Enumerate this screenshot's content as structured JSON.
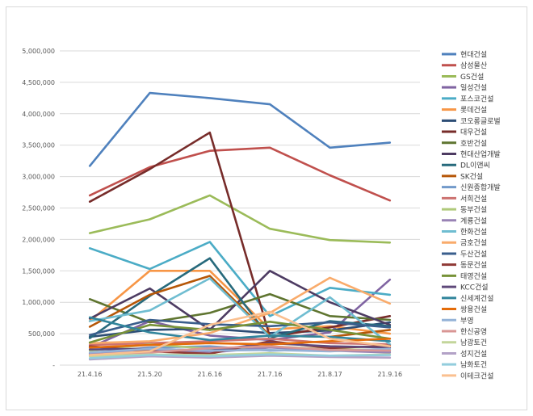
{
  "chart_data": {
    "type": "line",
    "title": "",
    "xlabel": "",
    "ylabel": "",
    "ylim": [
      0,
      5000000
    ],
    "yticks": [
      0,
      500000,
      1000000,
      1500000,
      2000000,
      2500000,
      3000000,
      3500000,
      4000000,
      4500000,
      5000000
    ],
    "ytick_labels": [
      "-",
      "500,000",
      "1,000,000",
      "1,500,000",
      "2,000,000",
      "2,500,000",
      "3,000,000",
      "3,500,000",
      "4,000,000",
      "4,500,000",
      "5,000,000"
    ],
    "categories": [
      "21.4.16",
      "21.5.20",
      "21.6.16",
      "21.7.16",
      "21.8.17",
      "21.9.16"
    ],
    "grid": true,
    "legend": "right",
    "series": [
      {
        "name": "현대건설",
        "color": "#4f81bd",
        "values": [
          3170000,
          4330000,
          4250000,
          4150000,
          3460000,
          3540000
        ]
      },
      {
        "name": "삼성물산",
        "color": "#c0504d",
        "values": [
          2700000,
          3150000,
          3410000,
          3460000,
          3020000,
          2620000
        ]
      },
      {
        "name": "GS건설",
        "color": "#9bbb59",
        "values": [
          2100000,
          2320000,
          2700000,
          2170000,
          1990000,
          1950000
        ]
      },
      {
        "name": "일성건설",
        "color": "#8064a2",
        "values": [
          280000,
          700000,
          470000,
          400000,
          520000,
          1360000
        ]
      },
      {
        "name": "포스코건설",
        "color": "#4bacc6",
        "values": [
          1860000,
          1530000,
          1960000,
          780000,
          1230000,
          1120000
        ]
      },
      {
        "name": "롯데건설",
        "color": "#f79646",
        "values": [
          700000,
          1500000,
          1500000,
          570000,
          620000,
          500000
        ]
      },
      {
        "name": "코오롱글로벌",
        "color": "#2c4d75",
        "values": [
          450000,
          560000,
          580000,
          510000,
          550000,
          680000
        ]
      },
      {
        "name": "대우건설",
        "color": "#772c2a",
        "values": [
          2600000,
          3120000,
          3700000,
          450000,
          600000,
          780000
        ]
      },
      {
        "name": "호반건설",
        "color": "#5f7530",
        "values": [
          1050000,
          680000,
          830000,
          1130000,
          780000,
          720000
        ]
      },
      {
        "name": "현대산업개발",
        "color": "#4d3b62",
        "values": [
          740000,
          1220000,
          560000,
          1500000,
          1000000,
          640000
        ]
      },
      {
        "name": "DL이앤씨",
        "color": "#276a7c",
        "values": [
          430000,
          1100000,
          1700000,
          430000,
          700000,
          620000
        ]
      },
      {
        "name": "SK건설",
        "color": "#b65708",
        "values": [
          610000,
          1120000,
          1420000,
          470000,
          450000,
          560000
        ]
      },
      {
        "name": "신원종합개발",
        "color": "#729aca",
        "values": [
          190000,
          280000,
          300000,
          230000,
          250000,
          220000
        ]
      },
      {
        "name": "서희건설",
        "color": "#cd7371",
        "values": [
          320000,
          350000,
          380000,
          420000,
          350000,
          330000
        ]
      },
      {
        "name": "동부건설",
        "color": "#afc97a",
        "values": [
          230000,
          330000,
          260000,
          300000,
          250000,
          240000
        ]
      },
      {
        "name": "계룡건설",
        "color": "#9983b5",
        "values": [
          180000,
          240000,
          200000,
          280000,
          230000,
          200000
        ]
      },
      {
        "name": "한화건설",
        "color": "#6fbdd1",
        "values": [
          700000,
          870000,
          1380000,
          450000,
          1080000,
          330000
        ]
      },
      {
        "name": "금호건설",
        "color": "#f9ab6b",
        "values": [
          350000,
          380000,
          510000,
          830000,
          1390000,
          980000
        ]
      },
      {
        "name": "두산건설",
        "color": "#3a5e8c",
        "values": [
          480000,
          720000,
          650000,
          620000,
          680000,
          600000
        ]
      },
      {
        "name": "동문건설",
        "color": "#8f3936",
        "values": [
          300000,
          220000,
          180000,
          380000,
          270000,
          310000
        ]
      },
      {
        "name": "태영건설",
        "color": "#779238",
        "values": [
          360000,
          640000,
          560000,
          690000,
          560000,
          420000
        ]
      },
      {
        "name": "KCC건설",
        "color": "#5f497a",
        "values": [
          250000,
          260000,
          230000,
          350000,
          300000,
          280000
        ]
      },
      {
        "name": "신세계건설",
        "color": "#31859c",
        "values": [
          760000,
          520000,
          400000,
          470000,
          450000,
          380000
        ]
      },
      {
        "name": "쌍용건설",
        "color": "#e46c0a",
        "values": [
          280000,
          320000,
          350000,
          330000,
          380000,
          420000
        ]
      },
      {
        "name": "부영",
        "color": "#95b3d7",
        "values": [
          200000,
          260000,
          230000,
          240000,
          220000,
          260000
        ]
      },
      {
        "name": "한신공영",
        "color": "#d99694",
        "values": [
          150000,
          200000,
          270000,
          300000,
          240000,
          230000
        ]
      },
      {
        "name": "남광토건",
        "color": "#c3d69b",
        "values": [
          140000,
          170000,
          160000,
          190000,
          150000,
          170000
        ]
      },
      {
        "name": "성지건설",
        "color": "#b3a2c7",
        "values": [
          90000,
          140000,
          120000,
          150000,
          130000,
          120000
        ]
      },
      {
        "name": "남화토건",
        "color": "#93cddd",
        "values": [
          110000,
          160000,
          140000,
          170000,
          150000,
          160000
        ]
      },
      {
        "name": "이테크건설",
        "color": "#fac090",
        "values": [
          160000,
          220000,
          640000,
          850000,
          420000,
          300000
        ]
      }
    ]
  }
}
